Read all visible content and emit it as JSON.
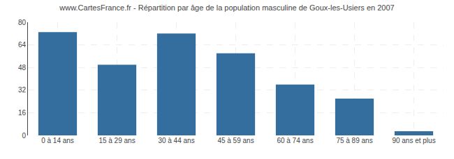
{
  "chart_data": {
    "type": "bar",
    "title": "www.CartesFrance.fr - Répartition par âge de la population masculine de Goux-les-Usiers en 2007",
    "categories": [
      "0 à 14 ans",
      "15 à 29 ans",
      "30 à 44 ans",
      "45 à 59 ans",
      "60 à 74 ans",
      "75 à 89 ans",
      "90 ans et plus"
    ],
    "values": [
      73,
      50,
      72,
      58,
      36,
      26,
      3
    ],
    "color": "#336e9e",
    "ylim": [
      0,
      80
    ],
    "yticks": [
      0,
      16,
      32,
      48,
      64,
      80
    ],
    "grid": true
  }
}
